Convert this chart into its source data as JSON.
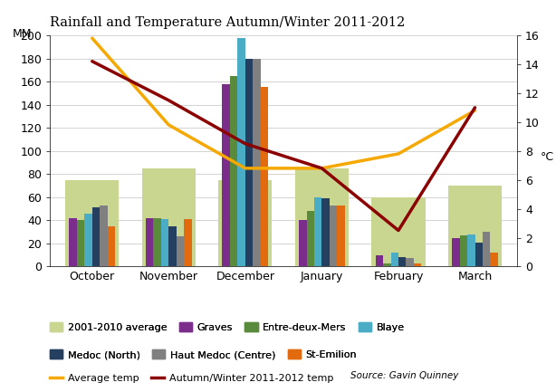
{
  "title": "Rainfall and Temperature Autumn/Winter 2011-2012",
  "months": [
    "October",
    "November",
    "December",
    "January",
    "February",
    "March"
  ],
  "bar_data_avg": [
    75,
    85,
    75,
    85,
    60,
    70
  ],
  "bar_data": {
    "Graves": [
      42,
      42,
      158,
      40,
      10,
      25
    ],
    "Entre-deux-Mers": [
      40,
      42,
      165,
      48,
      3,
      27
    ],
    "Blaye": [
      46,
      41,
      198,
      60,
      12,
      28
    ],
    "Medoc (North)": [
      51,
      35,
      180,
      59,
      8,
      21
    ],
    "Haut Medoc (Centre)": [
      53,
      26,
      180,
      53,
      7,
      30
    ],
    "St-Emilion": [
      35,
      41,
      155,
      53,
      3,
      12
    ]
  },
  "bar_colors": {
    "2001-2010 average": "#c8d68f",
    "Graves": "#7b2d8b",
    "Entre-deux-Mers": "#5a8a3c",
    "Blaye": "#4bacc6",
    "Medoc (North)": "#243f60",
    "Haut Medoc (Centre)": "#808080",
    "St-Emilion": "#e26b10"
  },
  "avg_temp": [
    15.8,
    9.8,
    6.8,
    6.8,
    7.8,
    10.8
  ],
  "aw_temp": [
    14.2,
    11.5,
    8.5,
    6.8,
    2.5,
    11.0
  ],
  "ylim_left": [
    0,
    200
  ],
  "ylim_right": [
    0,
    16
  ],
  "ylabel_left": "MM",
  "ylabel_right": "°C",
  "source": "Source: Gavin Quinney",
  "avg_temp_color": "#f5a800",
  "aw_temp_color": "#8b0000",
  "legend_row1": [
    "2001-2010 average",
    "Graves",
    "Entre-deux-Mers",
    "Blaye"
  ],
  "legend_row2": [
    "Medoc (North)",
    "Haut Medoc (Centre)",
    "St-Emilion"
  ],
  "legend_row3_lines": [
    "Average temp",
    "Autumn/Winter 2011-2012 temp"
  ]
}
